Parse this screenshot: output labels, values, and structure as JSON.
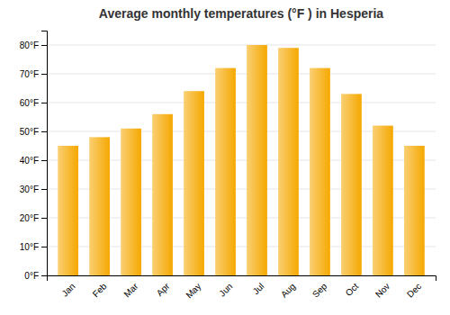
{
  "chart_data": {
    "type": "bar",
    "title": "Average monthly temperatures (°F ) in Hesperia",
    "categories": [
      "Jan",
      "Feb",
      "Mar",
      "Apr",
      "May",
      "Jun",
      "Jul",
      "Aug",
      "Sep",
      "Oct",
      "Nov",
      "Dec"
    ],
    "values": [
      45,
      48,
      51,
      56,
      64,
      72,
      80,
      79,
      72,
      63,
      52,
      45
    ],
    "color": "#F5A800",
    "ylim": [
      0,
      85
    ],
    "yticks": [
      {
        "value": 0,
        "label": "0°F"
      },
      {
        "value": 10,
        "label": "10°F"
      },
      {
        "value": 20,
        "label": "20°F"
      },
      {
        "value": 30,
        "label": "30°F"
      },
      {
        "value": 40,
        "label": "40°F"
      },
      {
        "value": 50,
        "label": "50°F"
      },
      {
        "value": 60,
        "label": "60°F"
      },
      {
        "value": 70,
        "label": "70°F"
      },
      {
        "value": 80,
        "label": "80°F"
      }
    ],
    "grid": true
  }
}
